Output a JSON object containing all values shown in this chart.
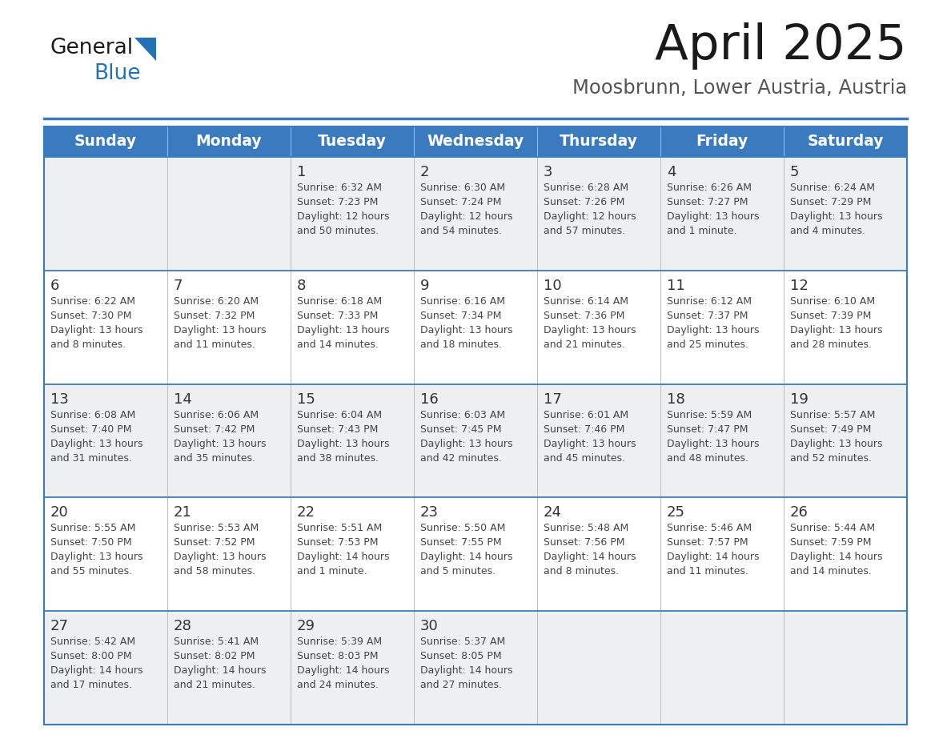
{
  "title": "April 2025",
  "subtitle": "Moosbrunn, Lower Austria, Austria",
  "header_color": "#3a7abf",
  "header_text_color": "#ffffff",
  "row_colors": [
    "#eeeff1",
    "#ffffff"
  ],
  "border_color": "#3a7abf",
  "text_color": "#333333",
  "info_text_color": "#444444",
  "days_of_week": [
    "Sunday",
    "Monday",
    "Tuesday",
    "Wednesday",
    "Thursday",
    "Friday",
    "Saturday"
  ],
  "weeks": [
    [
      {
        "day": "",
        "info": ""
      },
      {
        "day": "",
        "info": ""
      },
      {
        "day": "1",
        "info": "Sunrise: 6:32 AM\nSunset: 7:23 PM\nDaylight: 12 hours\nand 50 minutes."
      },
      {
        "day": "2",
        "info": "Sunrise: 6:30 AM\nSunset: 7:24 PM\nDaylight: 12 hours\nand 54 minutes."
      },
      {
        "day": "3",
        "info": "Sunrise: 6:28 AM\nSunset: 7:26 PM\nDaylight: 12 hours\nand 57 minutes."
      },
      {
        "day": "4",
        "info": "Sunrise: 6:26 AM\nSunset: 7:27 PM\nDaylight: 13 hours\nand 1 minute."
      },
      {
        "day": "5",
        "info": "Sunrise: 6:24 AM\nSunset: 7:29 PM\nDaylight: 13 hours\nand 4 minutes."
      }
    ],
    [
      {
        "day": "6",
        "info": "Sunrise: 6:22 AM\nSunset: 7:30 PM\nDaylight: 13 hours\nand 8 minutes."
      },
      {
        "day": "7",
        "info": "Sunrise: 6:20 AM\nSunset: 7:32 PM\nDaylight: 13 hours\nand 11 minutes."
      },
      {
        "day": "8",
        "info": "Sunrise: 6:18 AM\nSunset: 7:33 PM\nDaylight: 13 hours\nand 14 minutes."
      },
      {
        "day": "9",
        "info": "Sunrise: 6:16 AM\nSunset: 7:34 PM\nDaylight: 13 hours\nand 18 minutes."
      },
      {
        "day": "10",
        "info": "Sunrise: 6:14 AM\nSunset: 7:36 PM\nDaylight: 13 hours\nand 21 minutes."
      },
      {
        "day": "11",
        "info": "Sunrise: 6:12 AM\nSunset: 7:37 PM\nDaylight: 13 hours\nand 25 minutes."
      },
      {
        "day": "12",
        "info": "Sunrise: 6:10 AM\nSunset: 7:39 PM\nDaylight: 13 hours\nand 28 minutes."
      }
    ],
    [
      {
        "day": "13",
        "info": "Sunrise: 6:08 AM\nSunset: 7:40 PM\nDaylight: 13 hours\nand 31 minutes."
      },
      {
        "day": "14",
        "info": "Sunrise: 6:06 AM\nSunset: 7:42 PM\nDaylight: 13 hours\nand 35 minutes."
      },
      {
        "day": "15",
        "info": "Sunrise: 6:04 AM\nSunset: 7:43 PM\nDaylight: 13 hours\nand 38 minutes."
      },
      {
        "day": "16",
        "info": "Sunrise: 6:03 AM\nSunset: 7:45 PM\nDaylight: 13 hours\nand 42 minutes."
      },
      {
        "day": "17",
        "info": "Sunrise: 6:01 AM\nSunset: 7:46 PM\nDaylight: 13 hours\nand 45 minutes."
      },
      {
        "day": "18",
        "info": "Sunrise: 5:59 AM\nSunset: 7:47 PM\nDaylight: 13 hours\nand 48 minutes."
      },
      {
        "day": "19",
        "info": "Sunrise: 5:57 AM\nSunset: 7:49 PM\nDaylight: 13 hours\nand 52 minutes."
      }
    ],
    [
      {
        "day": "20",
        "info": "Sunrise: 5:55 AM\nSunset: 7:50 PM\nDaylight: 13 hours\nand 55 minutes."
      },
      {
        "day": "21",
        "info": "Sunrise: 5:53 AM\nSunset: 7:52 PM\nDaylight: 13 hours\nand 58 minutes."
      },
      {
        "day": "22",
        "info": "Sunrise: 5:51 AM\nSunset: 7:53 PM\nDaylight: 14 hours\nand 1 minute."
      },
      {
        "day": "23",
        "info": "Sunrise: 5:50 AM\nSunset: 7:55 PM\nDaylight: 14 hours\nand 5 minutes."
      },
      {
        "day": "24",
        "info": "Sunrise: 5:48 AM\nSunset: 7:56 PM\nDaylight: 14 hours\nand 8 minutes."
      },
      {
        "day": "25",
        "info": "Sunrise: 5:46 AM\nSunset: 7:57 PM\nDaylight: 14 hours\nand 11 minutes."
      },
      {
        "day": "26",
        "info": "Sunrise: 5:44 AM\nSunset: 7:59 PM\nDaylight: 14 hours\nand 14 minutes."
      }
    ],
    [
      {
        "day": "27",
        "info": "Sunrise: 5:42 AM\nSunset: 8:00 PM\nDaylight: 14 hours\nand 17 minutes."
      },
      {
        "day": "28",
        "info": "Sunrise: 5:41 AM\nSunset: 8:02 PM\nDaylight: 14 hours\nand 21 minutes."
      },
      {
        "day": "29",
        "info": "Sunrise: 5:39 AM\nSunset: 8:03 PM\nDaylight: 14 hours\nand 24 minutes."
      },
      {
        "day": "30",
        "info": "Sunrise: 5:37 AM\nSunset: 8:05 PM\nDaylight: 14 hours\nand 27 minutes."
      },
      {
        "day": "",
        "info": ""
      },
      {
        "day": "",
        "info": ""
      },
      {
        "day": "",
        "info": ""
      }
    ]
  ],
  "logo_color1": "#1a1a1a",
  "logo_color2": "#2472b5",
  "logo_triangle_color": "#2472b5",
  "title_color": "#1a1a1a",
  "subtitle_color": "#555555"
}
